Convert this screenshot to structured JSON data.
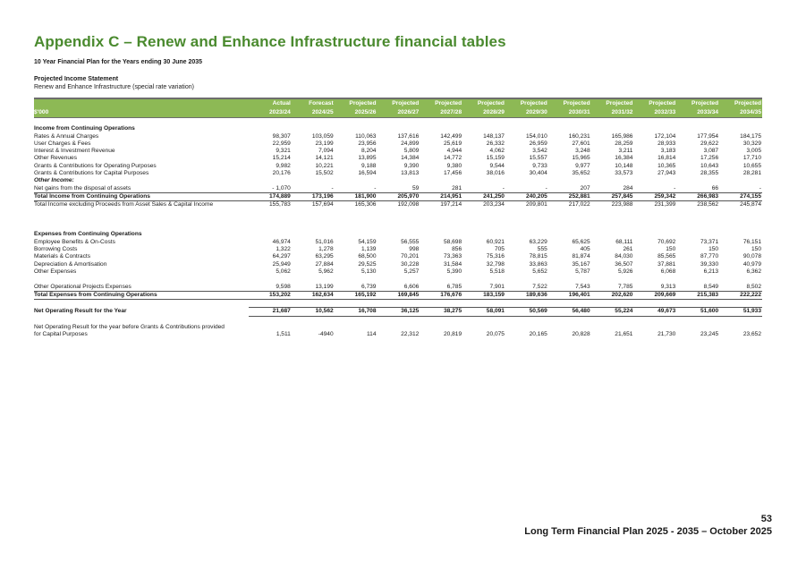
{
  "page": {
    "title": "Appendix C – Renew and Enhance Infrastructure financial tables",
    "subtitle": "10 Year Financial Plan for the Years ending 30 June 2035",
    "statement_title": "Projected Income Statement",
    "statement_subtitle": "Renew and Enhance Infrastructure (special rate variation)",
    "page_number": "53",
    "footer": "Long Term Financial Plan 2025 - 2035 – October 2025"
  },
  "colors": {
    "title_green": "#4a8a2e",
    "header_green": "#8db955"
  },
  "table": {
    "unit": "$'000",
    "columns": [
      {
        "type": "Actual",
        "year": "2023/24"
      },
      {
        "type": "Forecast",
        "year": "2024/25"
      },
      {
        "type": "Projected",
        "year": "2025/26"
      },
      {
        "type": "Projected",
        "year": "2026/27"
      },
      {
        "type": "Projected",
        "year": "2027/28"
      },
      {
        "type": "Projected",
        "year": "2028/29"
      },
      {
        "type": "Projected",
        "year": "2029/30"
      },
      {
        "type": "Projected",
        "year": "2030/31"
      },
      {
        "type": "Projected",
        "year": "2031/32"
      },
      {
        "type": "Projected",
        "year": "2032/33"
      },
      {
        "type": "Projected",
        "year": "2033/34"
      },
      {
        "type": "Projected",
        "year": "2034/35"
      }
    ],
    "income_heading": "Income from Continuing Operations",
    "income_rows": [
      {
        "label": "Rates & Annual Charges",
        "values": [
          "98,307",
          "103,059",
          "110,063",
          "137,616",
          "142,499",
          "148,137",
          "154,010",
          "160,231",
          "165,986",
          "172,104",
          "177,954",
          "184,175"
        ]
      },
      {
        "label": "User Charges & Fees",
        "values": [
          "22,959",
          "23,199",
          "23,956",
          "24,899",
          "25,619",
          "26,332",
          "26,959",
          "27,601",
          "28,259",
          "28,933",
          "29,622",
          "30,329"
        ]
      },
      {
        "label": "Interest & Investment Revenue",
        "values": [
          "9,321",
          "7,094",
          "8,204",
          "5,809",
          "4,944",
          "4,062",
          "3,542",
          "3,248",
          "3,211",
          "3,183",
          "3,087",
          "3,005"
        ]
      },
      {
        "label": "Other Revenues",
        "values": [
          "15,214",
          "14,121",
          "13,895",
          "14,384",
          "14,772",
          "15,159",
          "15,557",
          "15,965",
          "16,384",
          "16,814",
          "17,256",
          "17,710"
        ]
      },
      {
        "label": "Grants & Contributions for Operating Purposes",
        "values": [
          "9,982",
          "10,221",
          "9,188",
          "9,390",
          "9,380",
          "9,544",
          "9,733",
          "9,977",
          "10,148",
          "10,365",
          "10,643",
          "10,655"
        ]
      },
      {
        "label": "Grants & Contributions for Capital Purposes",
        "values": [
          "20,176",
          "15,502",
          "16,594",
          "13,813",
          "17,456",
          "38,016",
          "30,404",
          "35,652",
          "33,573",
          "27,943",
          "28,355",
          "28,281"
        ]
      }
    ],
    "other_income_heading": "Other Income:",
    "asset_disposal": {
      "label": "Net gains from the disposal of assets",
      "values": [
        "- 1,070",
        "-",
        "-",
        "59",
        "281",
        "-",
        "-",
        "207",
        "284",
        "-",
        "66",
        "-"
      ]
    },
    "total_income": {
      "label": "Total Income from Continuing Operations",
      "values": [
        "174,889",
        "173,196",
        "181,900",
        "205,970",
        "214,951",
        "241,250",
        "240,205",
        "252,881",
        "257,845",
        "259,342",
        "266,983",
        "274,155"
      ]
    },
    "total_income_excl": {
      "label": "Total Income excluding Proceeds from Asset Sales & Capital Income",
      "values": [
        "155,783",
        "157,694",
        "165,306",
        "192,098",
        "197,214",
        "203,234",
        "209,801",
        "217,022",
        "223,988",
        "231,399",
        "238,562",
        "245,874"
      ]
    },
    "expenses_heading": "Expenses from Continuing Operations",
    "expense_rows": [
      {
        "label": "Employee Benefits & On-Costs",
        "values": [
          "46,974",
          "51,016",
          "54,159",
          "56,555",
          "58,698",
          "60,921",
          "63,229",
          "65,625",
          "68,111",
          "70,692",
          "73,371",
          "76,151"
        ]
      },
      {
        "label": "Borrowing Costs",
        "values": [
          "1,322",
          "1,278",
          "1,139",
          "998",
          "856",
          "705",
          "555",
          "405",
          "261",
          "150",
          "150",
          "150"
        ]
      },
      {
        "label": "Materials & Contracts",
        "values": [
          "64,297",
          "63,295",
          "68,500",
          "70,201",
          "73,363",
          "75,316",
          "78,815",
          "81,874",
          "84,030",
          "85,565",
          "87,770",
          "90,078"
        ]
      },
      {
        "label": "Depreciation & Amortisation",
        "values": [
          "25,949",
          "27,884",
          "29,525",
          "30,228",
          "31,584",
          "32,798",
          "33,863",
          "35,167",
          "36,507",
          "37,881",
          "39,330",
          "40,979"
        ]
      },
      {
        "label": "Other Expenses",
        "values": [
          "5,062",
          "5,962",
          "5,130",
          "5,257",
          "5,390",
          "5,518",
          "5,652",
          "5,787",
          "5,926",
          "6,068",
          "6,213",
          "6,362"
        ]
      }
    ],
    "other_projects": {
      "label": "Other Operational Projects Expenses",
      "values": [
        "9,598",
        "13,199",
        "6,739",
        "6,606",
        "6,785",
        "7,901",
        "7,522",
        "7,543",
        "7,785",
        "9,313",
        "8,549",
        "8,502"
      ]
    },
    "total_expenses": {
      "label": "Total Expenses from Continuing Operations",
      "values": [
        "153,202",
        "162,634",
        "165,192",
        "169,845",
        "176,676",
        "183,159",
        "189,636",
        "196,401",
        "202,620",
        "209,669",
        "215,383",
        "222,222"
      ]
    },
    "net_result": {
      "label": "Net Operating Result for the Year",
      "values": [
        "21,687",
        "10,562",
        "16,708",
        "36,125",
        "38,275",
        "58,091",
        "50,569",
        "56,480",
        "55,224",
        "49,673",
        "51,600",
        "51,933"
      ]
    },
    "net_before_grants": {
      "label_line1": "Net Operating Result for the year before Grants & Contributions provided",
      "label_line2": "for Capital Purposes",
      "values": [
        "1,511",
        "-4940",
        "114",
        "22,312",
        "20,819",
        "20,075",
        "20,165",
        "20,828",
        "21,651",
        "21,730",
        "23,245",
        "23,652"
      ]
    }
  }
}
